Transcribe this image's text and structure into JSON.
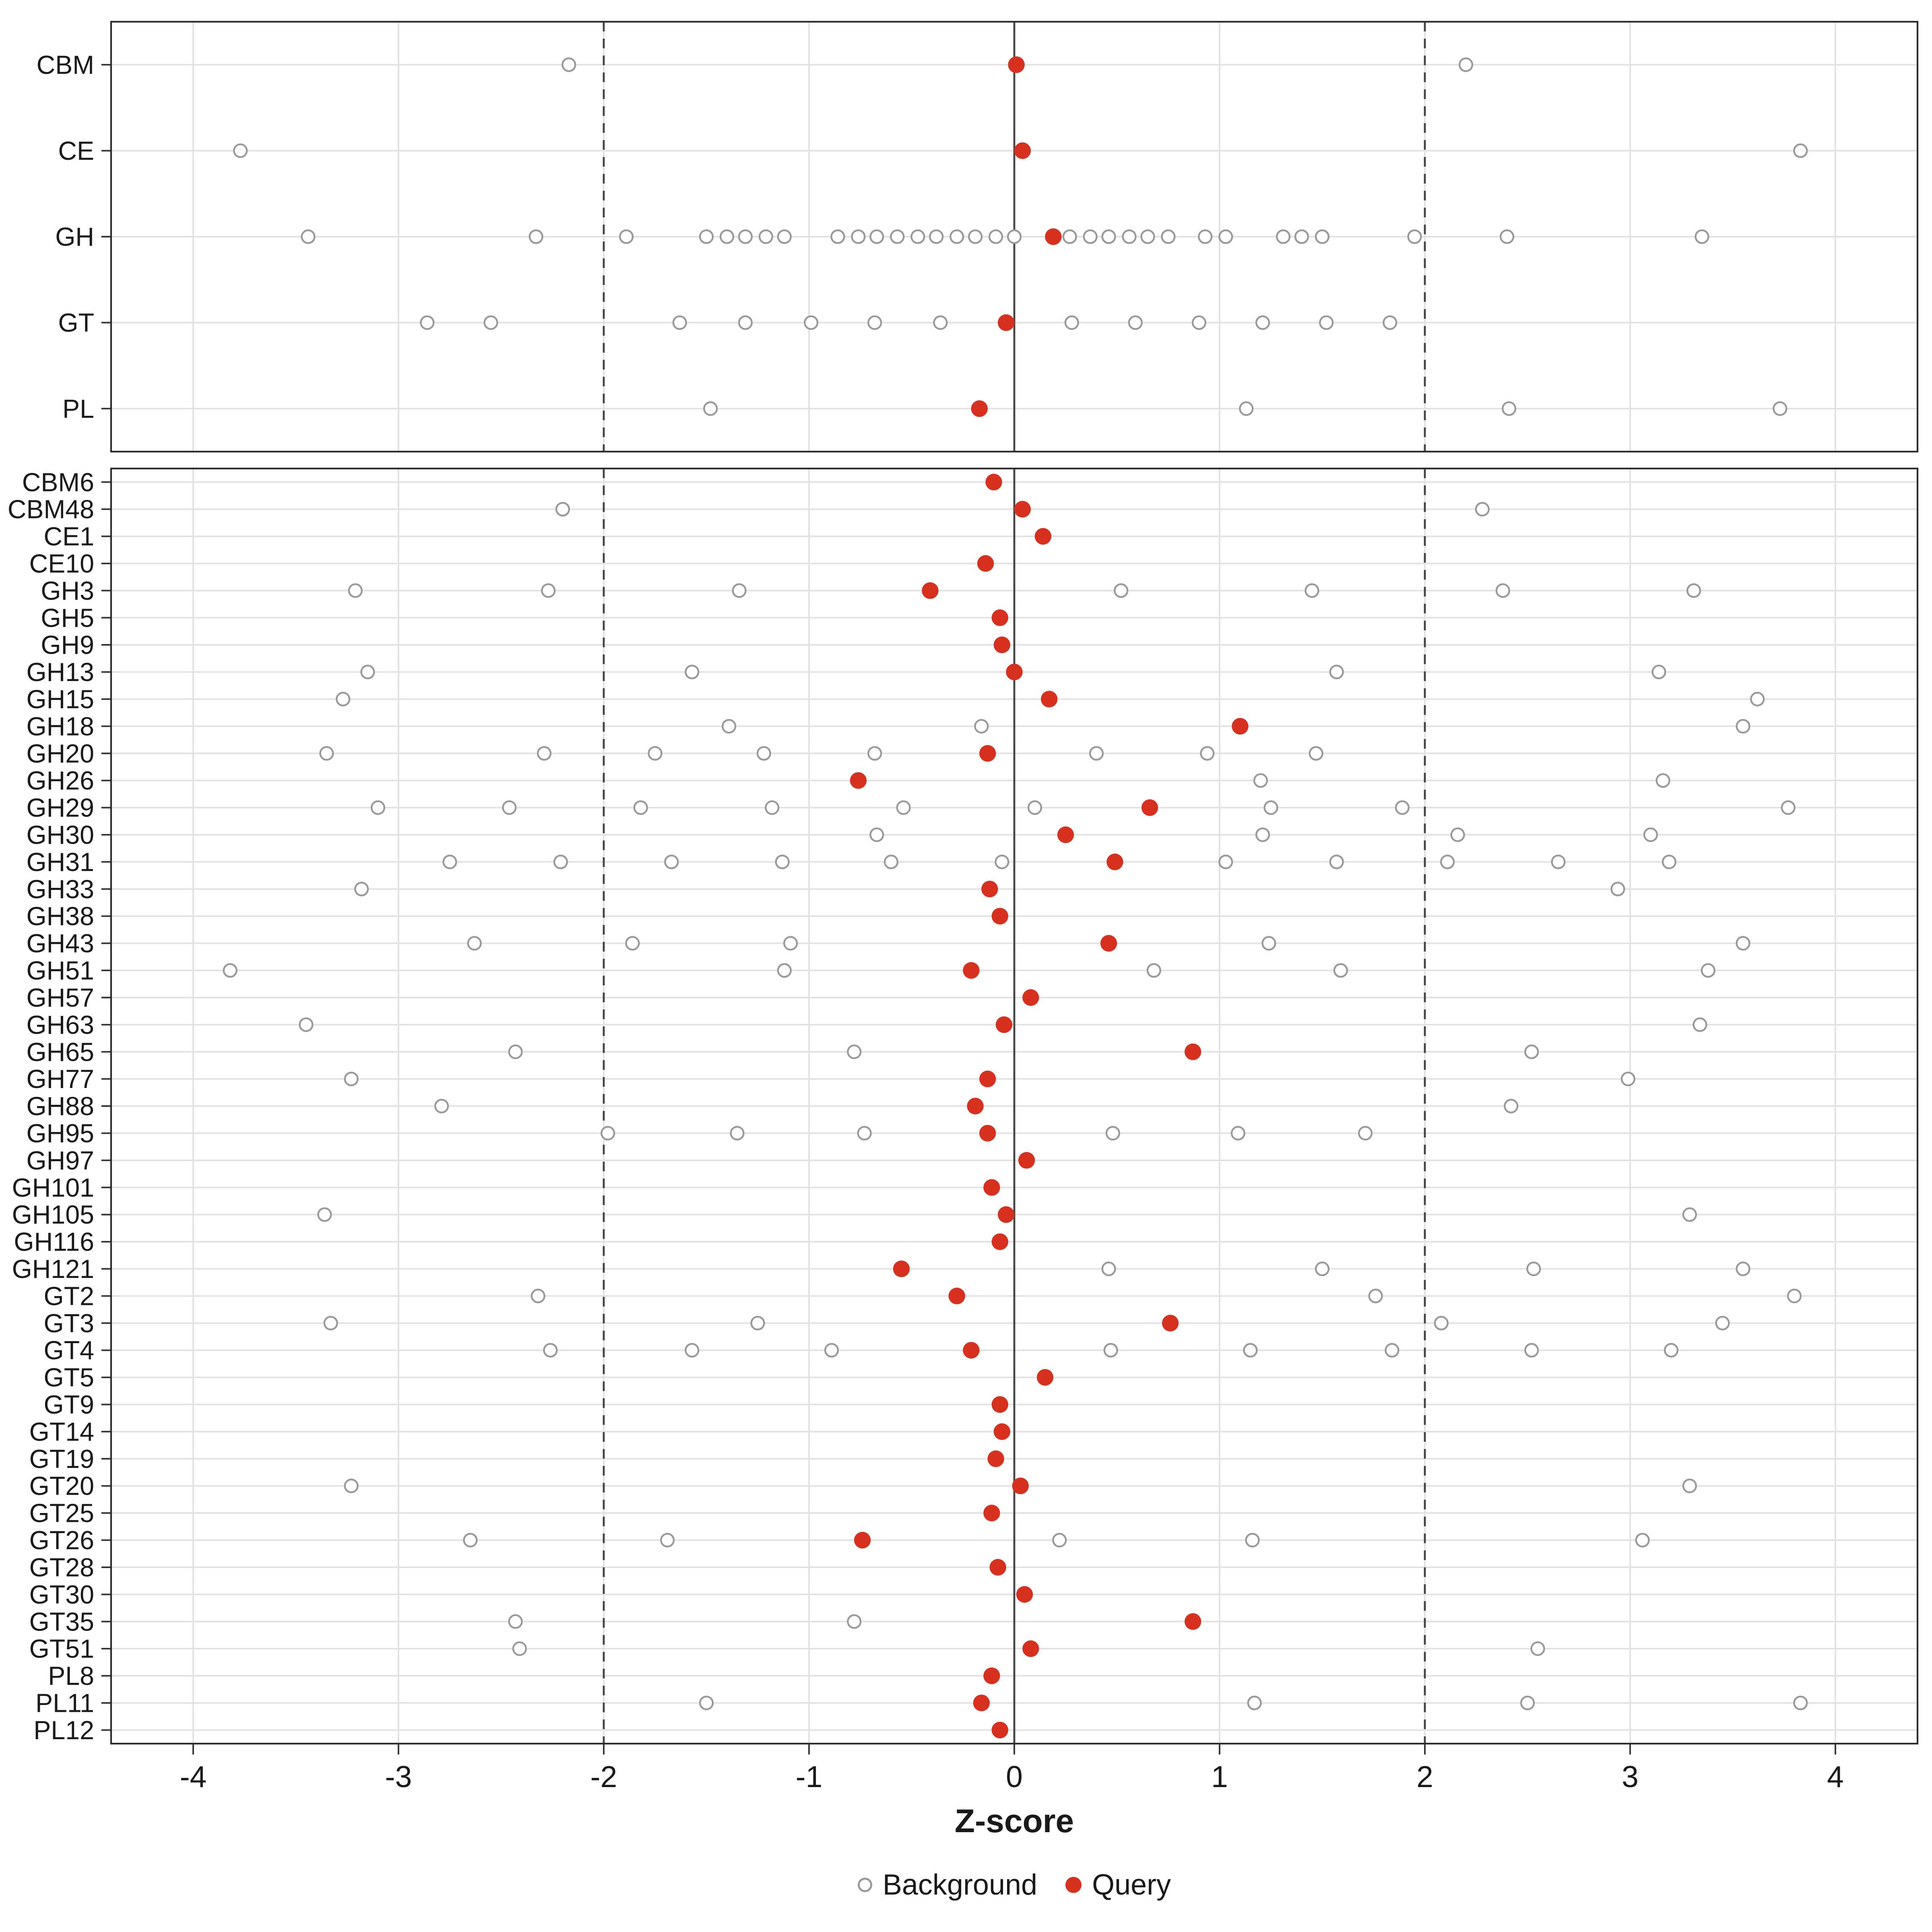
{
  "chart_data": {
    "type": "scatter",
    "title": "",
    "xlabel": "Z-score",
    "ylabel": "",
    "x_ticks": [
      -4,
      -3,
      -2,
      -1,
      0,
      1,
      2,
      3,
      4
    ],
    "x_domain": [
      -4.4,
      4.4
    ],
    "reference_lines": {
      "zero": 0,
      "dashed": [
        -2,
        2
      ]
    },
    "legend": [
      {
        "label": "Background",
        "marker": "open-circle"
      },
      {
        "label": "Query",
        "marker": "filled-circle"
      }
    ],
    "style": {
      "colors": {
        "query": "#D7301F",
        "background_stroke": "#9a9a9a",
        "grid": "#e2e2e2",
        "panel_border": "#2b2b2b",
        "ref_line": "#444444",
        "text": "#1a1a1a",
        "axis": "#333333",
        "panel_bg": "#ffffff"
      }
    },
    "panels": [
      {
        "id": "class",
        "rows": [
          {
            "label": "CBM",
            "query": 0.01,
            "background": [
              -2.17,
              2.2
            ]
          },
          {
            "label": "CE",
            "query": 0.04,
            "background": [
              -3.77,
              3.83
            ]
          },
          {
            "label": "GH",
            "query": 0.19,
            "background": [
              -3.44,
              -2.33,
              -1.89,
              -1.5,
              -1.4,
              -1.31,
              -1.21,
              -1.12,
              -0.86,
              -0.76,
              -0.67,
              -0.57,
              -0.47,
              -0.38,
              -0.28,
              -0.19,
              -0.09,
              0.0,
              0.27,
              0.37,
              0.46,
              0.56,
              0.65,
              0.75,
              0.93,
              1.03,
              1.31,
              1.4,
              1.5,
              1.95,
              2.4,
              3.35
            ]
          },
          {
            "label": "GT",
            "query": -0.04,
            "background": [
              -2.86,
              -2.55,
              -1.63,
              -1.31,
              -0.99,
              -0.68,
              -0.36,
              0.28,
              0.59,
              0.9,
              1.21,
              1.52,
              1.83
            ]
          },
          {
            "label": "PL",
            "query": -0.17,
            "background": [
              -1.48,
              1.13,
              2.41,
              3.73
            ]
          }
        ]
      },
      {
        "id": "family",
        "rows": [
          {
            "label": "CBM6",
            "query": -0.1,
            "background": []
          },
          {
            "label": "CBM48",
            "query": 0.04,
            "background": [
              -2.2,
              2.28
            ]
          },
          {
            "label": "CE1",
            "query": 0.14,
            "background": []
          },
          {
            "label": "CE10",
            "query": -0.14,
            "background": []
          },
          {
            "label": "GH3",
            "query": -0.41,
            "background": [
              -3.21,
              -2.27,
              -1.34,
              0.52,
              1.45,
              2.38,
              3.31
            ]
          },
          {
            "label": "GH5",
            "query": -0.07,
            "background": []
          },
          {
            "label": "GH9",
            "query": -0.06,
            "background": []
          },
          {
            "label": "GH13",
            "query": 0.0,
            "background": [
              -3.15,
              -1.57,
              1.57,
              3.14
            ]
          },
          {
            "label": "GH15",
            "query": 0.17,
            "background": [
              -3.27,
              3.62
            ]
          },
          {
            "label": "GH18",
            "query": 1.1,
            "background": [
              -1.39,
              -0.16,
              3.55
            ]
          },
          {
            "label": "GH20",
            "query": -0.13,
            "background": [
              -3.35,
              -2.29,
              -1.75,
              -1.22,
              -0.68,
              0.4,
              0.94,
              1.47
            ]
          },
          {
            "label": "GH26",
            "query": -0.76,
            "background": [
              1.2,
              3.16
            ]
          },
          {
            "label": "GH29",
            "query": 0.66,
            "background": [
              -3.1,
              -2.46,
              -1.82,
              -1.18,
              -0.54,
              0.1,
              1.25,
              1.89,
              3.77
            ]
          },
          {
            "label": "GH30",
            "query": 0.25,
            "background": [
              -0.67,
              1.21,
              2.16,
              3.1
            ]
          },
          {
            "label": "GH31",
            "query": 0.49,
            "background": [
              -2.75,
              -2.21,
              -1.67,
              -1.13,
              -0.6,
              -0.06,
              1.03,
              1.57,
              2.11,
              2.65,
              3.19
            ]
          },
          {
            "label": "GH33",
            "query": -0.12,
            "background": [
              -3.18,
              2.94
            ]
          },
          {
            "label": "GH38",
            "query": -0.07,
            "background": []
          },
          {
            "label": "GH43",
            "query": 0.46,
            "background": [
              -2.63,
              -1.86,
              -1.09,
              1.24,
              3.55
            ]
          },
          {
            "label": "GH51",
            "query": -0.21,
            "background": [
              -3.82,
              -1.12,
              0.68,
              1.59,
              3.38
            ]
          },
          {
            "label": "GH57",
            "query": 0.08,
            "background": []
          },
          {
            "label": "GH63",
            "query": -0.05,
            "background": [
              -3.45,
              3.34
            ]
          },
          {
            "label": "GH65",
            "query": 0.87,
            "background": [
              -2.43,
              -0.78,
              2.52
            ]
          },
          {
            "label": "GH77",
            "query": -0.13,
            "background": [
              -3.23,
              2.99
            ]
          },
          {
            "label": "GH88",
            "query": -0.19,
            "background": [
              -2.79,
              2.42
            ]
          },
          {
            "label": "GH95",
            "query": -0.13,
            "background": [
              -1.98,
              -1.35,
              -0.73,
              0.48,
              1.09,
              1.71
            ]
          },
          {
            "label": "GH97",
            "query": 0.06,
            "background": []
          },
          {
            "label": "GH101",
            "query": -0.11,
            "background": []
          },
          {
            "label": "GH105",
            "query": -0.04,
            "background": [
              -3.36,
              3.29
            ]
          },
          {
            "label": "GH116",
            "query": -0.07,
            "background": []
          },
          {
            "label": "GH121",
            "query": -0.55,
            "background": [
              0.46,
              1.5,
              2.53,
              3.55
            ]
          },
          {
            "label": "GT2",
            "query": -0.28,
            "background": [
              -2.32,
              1.76,
              3.8
            ]
          },
          {
            "label": "GT3",
            "query": 0.76,
            "background": [
              -3.33,
              -1.25,
              2.08,
              3.45
            ]
          },
          {
            "label": "GT4",
            "query": -0.21,
            "background": [
              -2.26,
              -1.57,
              -0.89,
              0.47,
              1.15,
              1.84,
              2.52,
              3.2
            ]
          },
          {
            "label": "GT5",
            "query": 0.15,
            "background": []
          },
          {
            "label": "GT9",
            "query": -0.07,
            "background": []
          },
          {
            "label": "GT14",
            "query": -0.06,
            "background": []
          },
          {
            "label": "GT19",
            "query": -0.09,
            "background": []
          },
          {
            "label": "GT20",
            "query": 0.03,
            "background": [
              -3.23,
              3.29
            ]
          },
          {
            "label": "GT25",
            "query": -0.11,
            "background": []
          },
          {
            "label": "GT26",
            "query": -0.74,
            "background": [
              -2.65,
              -1.69,
              0.22,
              1.16,
              3.06
            ]
          },
          {
            "label": "GT28",
            "query": -0.08,
            "background": []
          },
          {
            "label": "GT30",
            "query": 0.05,
            "background": []
          },
          {
            "label": "GT35",
            "query": 0.87,
            "background": [
              -2.43,
              -0.78
            ]
          },
          {
            "label": "GT51",
            "query": 0.08,
            "background": [
              -2.41,
              2.55
            ]
          },
          {
            "label": "PL8",
            "query": -0.11,
            "background": []
          },
          {
            "label": "PL11",
            "query": -0.16,
            "background": [
              -1.5,
              1.17,
              2.5,
              3.83
            ]
          },
          {
            "label": "PL12",
            "query": -0.07,
            "background": []
          }
        ]
      }
    ]
  }
}
